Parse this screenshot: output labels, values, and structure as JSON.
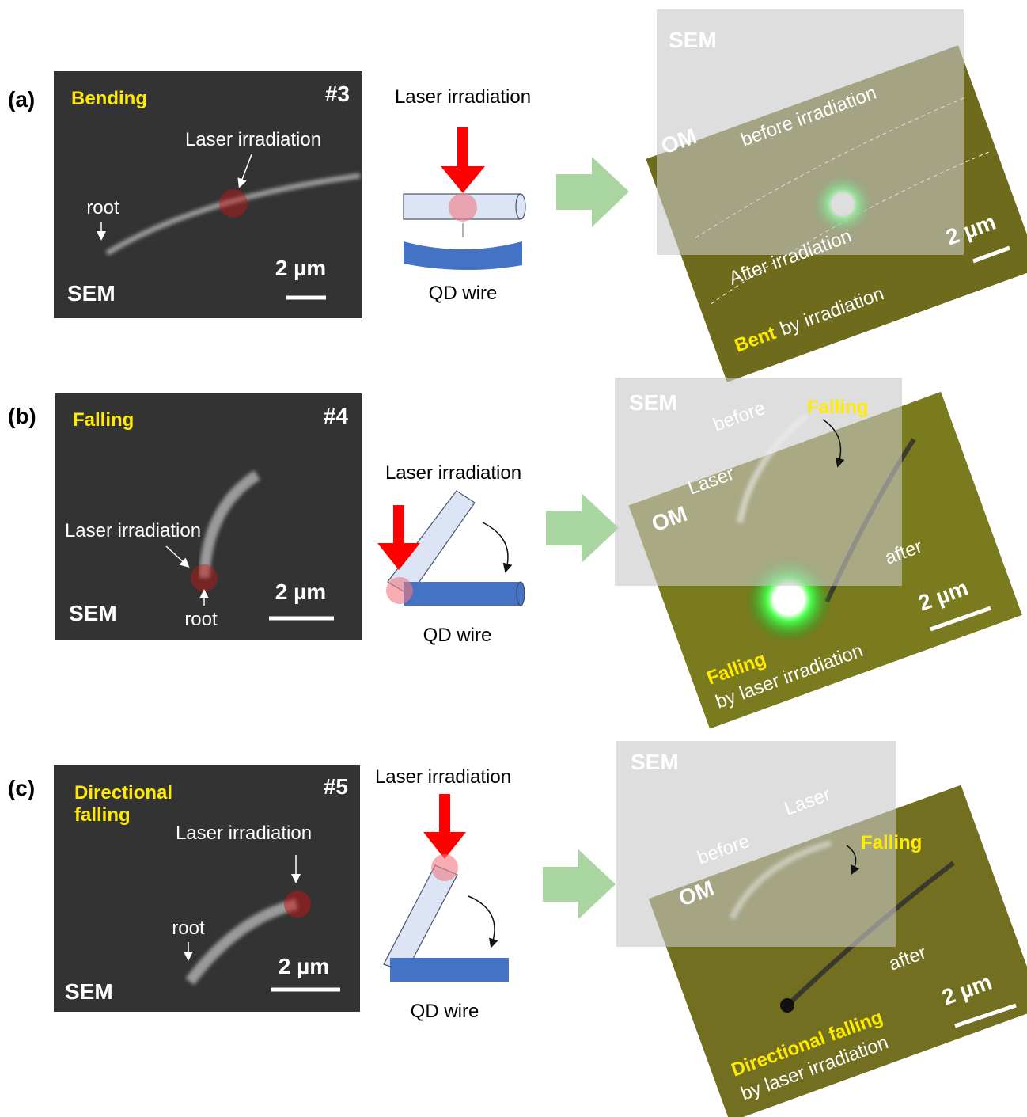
{
  "panels": [
    {
      "label": "(a)",
      "sem": {
        "mode": "Bending",
        "sample": "#3",
        "laser": "Laser irradiation",
        "root": "root",
        "scale": "2 µm",
        "tag": "SEM"
      },
      "schematic": {
        "laser": "Laser irradiation",
        "wire": "QD wire"
      },
      "overlay": {
        "sem_tag": "SEM",
        "om_tag": "OM",
        "before": "before irradiation",
        "after": "After irradiation",
        "scale": "2 µm",
        "caption_bold": "Bent",
        "caption": "by irradiation"
      }
    },
    {
      "label": "(b)",
      "sem": {
        "mode": "Falling",
        "sample": "#4",
        "laser": "Laser irradiation",
        "root": "root",
        "scale": "2 µm",
        "tag": "SEM"
      },
      "schematic": {
        "laser": "Laser irradiation",
        "wire": "QD wire"
      },
      "overlay": {
        "sem_tag": "SEM",
        "before": "before",
        "falling": "Falling",
        "laser": "Laser",
        "om_tag": "OM",
        "after": "after",
        "scale": "2 µm",
        "caption_bold": "Falling",
        "caption": "by laser irradiation"
      }
    },
    {
      "label": "(c)",
      "sem": {
        "mode": [
          "Directional",
          "falling"
        ],
        "sample": "#5",
        "laser": "Laser irradiation",
        "root": "root",
        "scale": "2 µm",
        "tag": "SEM"
      },
      "schematic": {
        "laser": "Laser irradiation",
        "wire": "QD wire"
      },
      "overlay": {
        "sem_tag": "SEM",
        "laser": "Laser",
        "before": "before",
        "falling": "Falling",
        "om_tag": "OM",
        "after": "after",
        "scale": "2 µm",
        "caption_bold": "Directional falling",
        "caption": "by laser irradiation"
      }
    }
  ]
}
